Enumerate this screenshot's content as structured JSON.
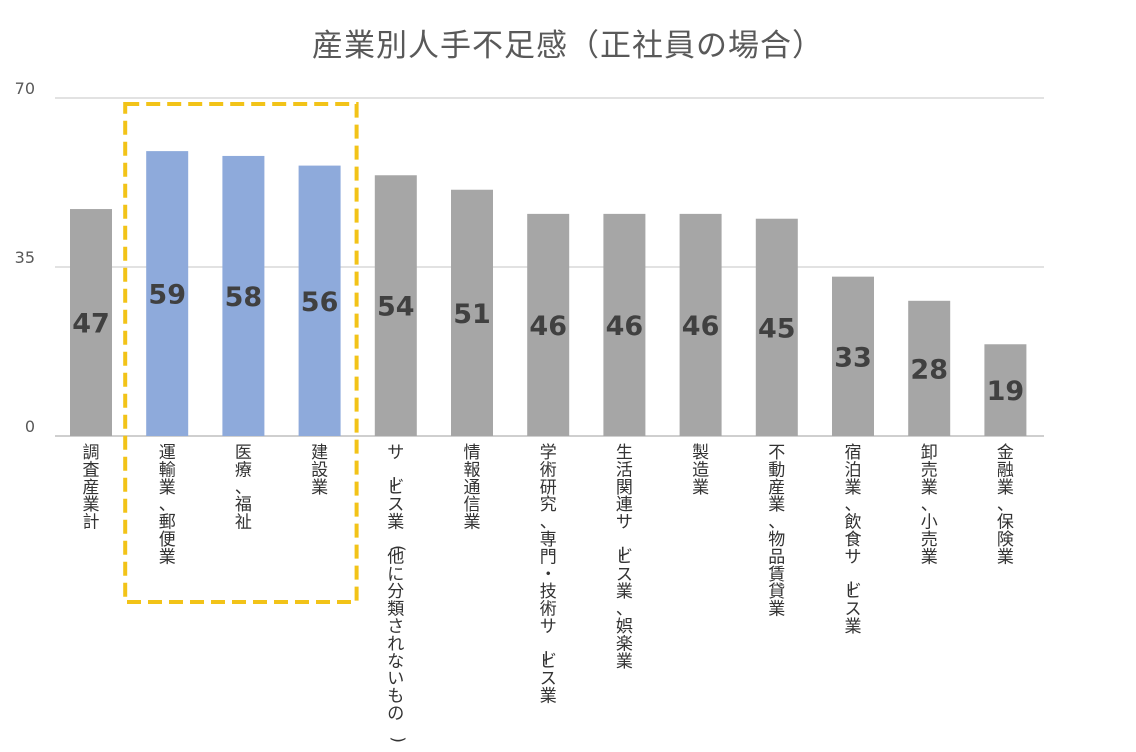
{
  "chart_data": {
    "type": "bar",
    "title": "産業別人手不足感（正社員の場合）",
    "xlabel": "",
    "ylabel": "",
    "ylim": [
      0,
      70
    ],
    "yticks": [
      0,
      35,
      70
    ],
    "grid": true,
    "legend": "none",
    "categories": [
      "調査産業計",
      "運輸業、郵便業",
      "医療、福祉",
      "建設業",
      "サービス業(他に分類されないもの)",
      "情報通信業",
      "学術研究、専門・技術サービス業",
      "生活関連サービス業、娯楽業",
      "製造業",
      "不動産業、物品賃貸業",
      "宿泊業、飲食サービス業",
      "卸売業、小売業",
      "金融業、保険業"
    ],
    "values": [
      47,
      59,
      58,
      56,
      54,
      51,
      46,
      46,
      46,
      45,
      33,
      28,
      19
    ],
    "highlighted": [
      false,
      true,
      true,
      true,
      false,
      false,
      false,
      false,
      false,
      false,
      false,
      false,
      false
    ],
    "colors": {
      "bar": "#a6a6a6",
      "highlight_bar": "#8eaadb",
      "highlight_box": "#f2c318",
      "grid": "#d9d9d9",
      "axis": "#bfbfbf"
    }
  }
}
